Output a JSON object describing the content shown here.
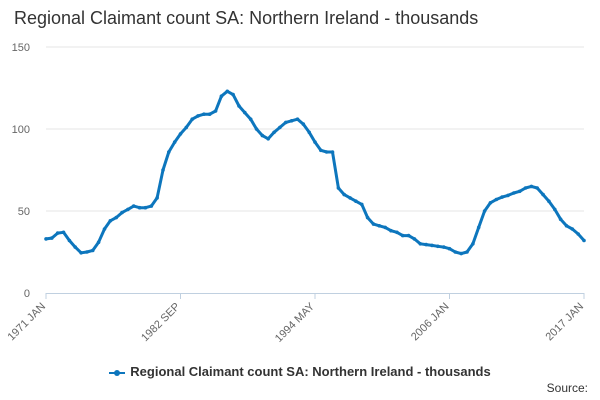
{
  "chart_data": {
    "type": "line",
    "title": "Regional Claimant count SA: Northern Ireland - thousands",
    "xlabel": "",
    "ylabel": "",
    "ylim": [
      0,
      150
    ],
    "y_ticks": [
      "0",
      "50",
      "100",
      "150"
    ],
    "x_tick_labels": [
      "1971 JAN",
      "1982 SEP",
      "1994 MAY",
      "2006 JAN",
      "2017 JAN"
    ],
    "grid": "horizontal",
    "legend": "bottom",
    "series_color": "#0d76bd",
    "series": [
      {
        "name": "Regional Claimant count SA: Northern Ireland - thousands",
        "points": [
          [
            "1971-01",
            33
          ],
          [
            "1971-07",
            33.5
          ],
          [
            "1972-01",
            36.5
          ],
          [
            "1972-07",
            37
          ],
          [
            "1973-01",
            32
          ],
          [
            "1973-07",
            28
          ],
          [
            "1974-01",
            24.5
          ],
          [
            "1974-07",
            25
          ],
          [
            "1975-01",
            26
          ],
          [
            "1975-07",
            31
          ],
          [
            "1976-01",
            39
          ],
          [
            "1976-07",
            44
          ],
          [
            "1977-01",
            46
          ],
          [
            "1977-07",
            49
          ],
          [
            "1978-01",
            51
          ],
          [
            "1978-07",
            53
          ],
          [
            "1979-01",
            52
          ],
          [
            "1979-07",
            52
          ],
          [
            "1980-01",
            53
          ],
          [
            "1980-07",
            58
          ],
          [
            "1981-01",
            75
          ],
          [
            "1981-07",
            86
          ],
          [
            "1982-01",
            92
          ],
          [
            "1982-07",
            97
          ],
          [
            "1983-01",
            101
          ],
          [
            "1983-07",
            106
          ],
          [
            "1984-01",
            108
          ],
          [
            "1984-07",
            109
          ],
          [
            "1985-01",
            109
          ],
          [
            "1985-07",
            111
          ],
          [
            "1986-01",
            120
          ],
          [
            "1986-07",
            123
          ],
          [
            "1987-01",
            121
          ],
          [
            "1987-07",
            114
          ],
          [
            "1988-01",
            110
          ],
          [
            "1988-07",
            106
          ],
          [
            "1989-01",
            100
          ],
          [
            "1989-07",
            96
          ],
          [
            "1990-01",
            94
          ],
          [
            "1990-07",
            98
          ],
          [
            "1991-01",
            101
          ],
          [
            "1991-07",
            104
          ],
          [
            "1992-01",
            105
          ],
          [
            "1992-07",
            106
          ],
          [
            "1993-01",
            103
          ],
          [
            "1993-07",
            98
          ],
          [
            "1994-01",
            92
          ],
          [
            "1994-07",
            87
          ],
          [
            "1995-01",
            86
          ],
          [
            "1995-07",
            86
          ],
          [
            "1996-01",
            64
          ],
          [
            "1996-07",
            60
          ],
          [
            "1997-01",
            58
          ],
          [
            "1997-07",
            56
          ],
          [
            "1998-01",
            54
          ],
          [
            "1998-07",
            46
          ],
          [
            "1999-01",
            42
          ],
          [
            "1999-07",
            41
          ],
          [
            "2000-01",
            40
          ],
          [
            "2000-07",
            38
          ],
          [
            "2001-01",
            37
          ],
          [
            "2001-07",
            35
          ],
          [
            "2002-01",
            35
          ],
          [
            "2002-07",
            33
          ],
          [
            "2003-01",
            30
          ],
          [
            "2003-07",
            29.5
          ],
          [
            "2004-01",
            29
          ],
          [
            "2004-07",
            28.5
          ],
          [
            "2005-01",
            28
          ],
          [
            "2005-07",
            27
          ],
          [
            "2006-01",
            25
          ],
          [
            "2006-07",
            24
          ],
          [
            "2007-01",
            25
          ],
          [
            "2007-07",
            30
          ],
          [
            "2008-01",
            40
          ],
          [
            "2008-07",
            50
          ],
          [
            "2009-01",
            55
          ],
          [
            "2009-07",
            57
          ],
          [
            "2010-01",
            58.5
          ],
          [
            "2010-07",
            59.5
          ],
          [
            "2011-01",
            61
          ],
          [
            "2011-07",
            62
          ],
          [
            "2012-01",
            64
          ],
          [
            "2012-07",
            65
          ],
          [
            "2013-01",
            64
          ],
          [
            "2013-07",
            60
          ],
          [
            "2014-01",
            56
          ],
          [
            "2014-07",
            51
          ],
          [
            "2015-01",
            45
          ],
          [
            "2015-07",
            41
          ],
          [
            "2016-01",
            39
          ],
          [
            "2016-07",
            36
          ],
          [
            "2017-01",
            32
          ]
        ]
      }
    ]
  },
  "source_label": "Source:"
}
